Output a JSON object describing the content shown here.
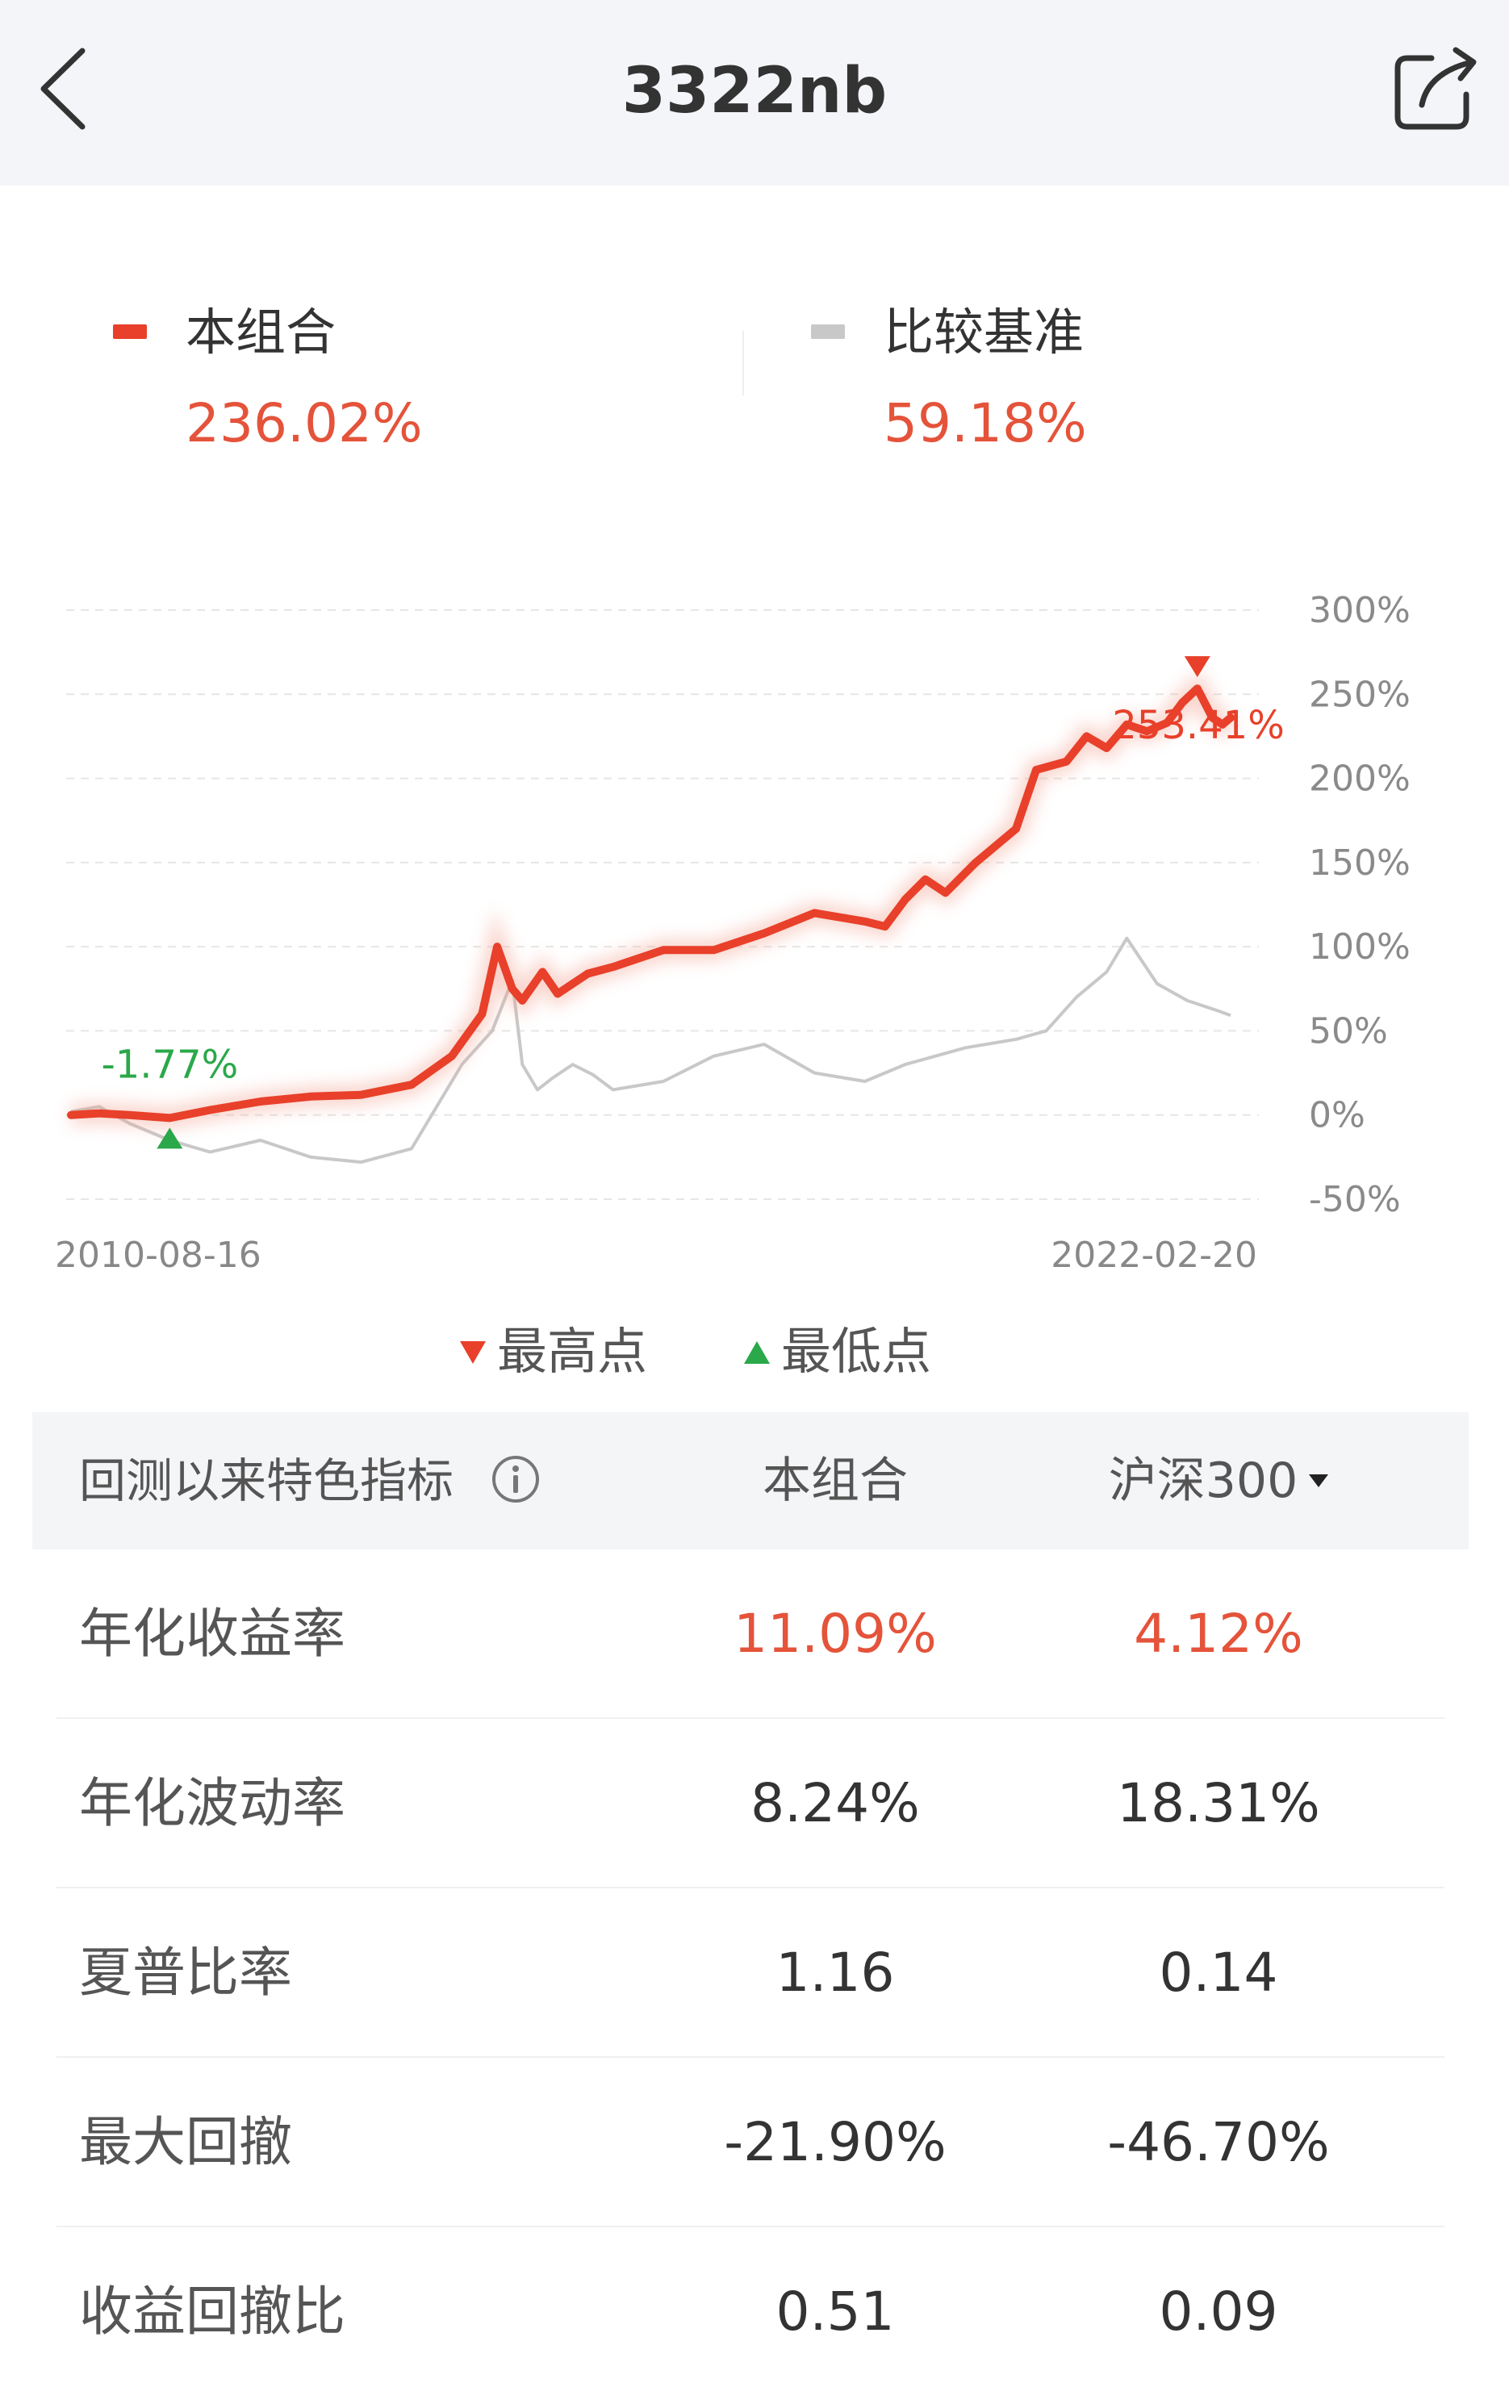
{
  "header": {
    "title": "3322nb",
    "back_icon": "chevron-left-icon",
    "share_icon": "share-icon"
  },
  "legend": {
    "portfolio": {
      "label": "本组合",
      "value": "236.02%",
      "color": "#e8402a"
    },
    "benchmark": {
      "label": "比较基准",
      "value": "59.18%",
      "color": "#c8c8c8"
    }
  },
  "markers": {
    "high_label": "最高点",
    "low_label": "最低点",
    "high_value": "253.41%",
    "low_value": "-1.77%"
  },
  "chart_data": {
    "type": "line",
    "x_start_label": "2010-08-16",
    "x_end_label": "2022-02-20",
    "x_range": [
      2010.62,
      2022.13
    ],
    "y_ticks": [
      "300%",
      "250%",
      "200%",
      "150%",
      "100%",
      "50%",
      "0%",
      "-50%"
    ],
    "ylim": [
      -50,
      300
    ],
    "grid": true,
    "series": [
      {
        "name": "本组合",
        "color": "#e8402a",
        "x": [
          2010.62,
          2010.9,
          2011.2,
          2011.6,
          2012.0,
          2012.5,
          2013.0,
          2013.5,
          2014.0,
          2014.4,
          2014.7,
          2014.85,
          2015.0,
          2015.1,
          2015.3,
          2015.45,
          2015.6,
          2015.75,
          2016.0,
          2016.5,
          2017.0,
          2017.5,
          2018.0,
          2018.5,
          2018.7,
          2018.9,
          2019.1,
          2019.3,
          2019.6,
          2020.0,
          2020.2,
          2020.5,
          2020.7,
          2020.9,
          2021.1,
          2021.3,
          2021.5,
          2021.65,
          2021.8,
          2021.95,
          2022.05,
          2022.13
        ],
        "values": [
          0,
          1,
          0,
          -1.77,
          3,
          8,
          11,
          12,
          18,
          35,
          60,
          100,
          75,
          68,
          85,
          72,
          78,
          84,
          88,
          98,
          98,
          108,
          120,
          115,
          112,
          128,
          140,
          132,
          150,
          170,
          205,
          210,
          225,
          218,
          232,
          228,
          233,
          245,
          253.41,
          236,
          232,
          236.02
        ]
      },
      {
        "name": "比较基准",
        "color": "#c8c8c8",
        "x": [
          2010.62,
          2010.9,
          2011.2,
          2011.6,
          2012.0,
          2012.5,
          2013.0,
          2013.5,
          2014.0,
          2014.5,
          2014.8,
          2015.0,
          2015.1,
          2015.25,
          2015.4,
          2015.6,
          2015.8,
          2016.0,
          2016.5,
          2017.0,
          2017.5,
          2018.0,
          2018.5,
          2018.9,
          2019.2,
          2019.5,
          2020.0,
          2020.3,
          2020.6,
          2020.9,
          2021.1,
          2021.4,
          2021.7,
          2022.0,
          2022.13
        ],
        "values": [
          2,
          5,
          -5,
          -15,
          -22,
          -15,
          -25,
          -28,
          -20,
          30,
          50,
          80,
          30,
          15,
          22,
          30,
          24,
          15,
          20,
          35,
          42,
          25,
          20,
          30,
          35,
          40,
          45,
          50,
          70,
          85,
          105,
          78,
          68,
          62,
          59.18
        ]
      }
    ],
    "annotations": [
      {
        "text": "253.41%",
        "type": "max",
        "series": "本组合"
      },
      {
        "text": "-1.77%",
        "type": "min",
        "series": "本组合"
      }
    ]
  },
  "metrics": {
    "header_label": "回测以来特色指标",
    "info_icon": "info-icon",
    "col_portfolio": "本组合",
    "col_benchmark": "沪深300",
    "rows": [
      {
        "label": "年化收益率",
        "portfolio": "11.09%",
        "benchmark": "4.12%"
      },
      {
        "label": "年化波动率",
        "portfolio": "8.24%",
        "benchmark": "18.31%"
      },
      {
        "label": "夏普比率",
        "portfolio": "1.16",
        "benchmark": "0.14"
      },
      {
        "label": "最大回撤",
        "portfolio": "-21.90%",
        "benchmark": "-46.70%"
      },
      {
        "label": "收益回撤比",
        "portfolio": "0.51",
        "benchmark": "0.09"
      }
    ]
  }
}
